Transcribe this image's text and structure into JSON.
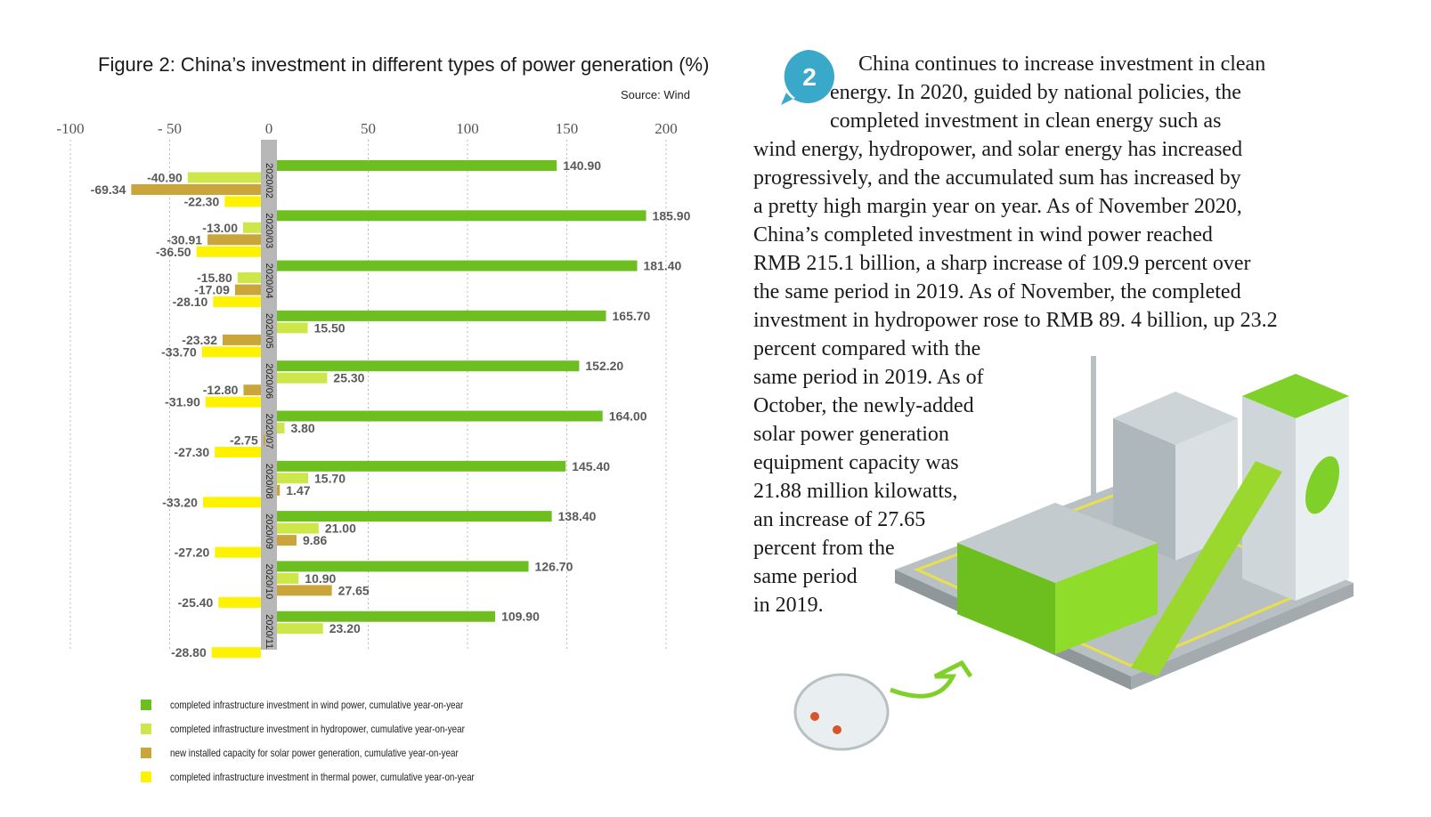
{
  "chart_data": {
    "type": "bar",
    "orientation": "horizontal",
    "title": "Figure 2: China’s investment in different types of power generation (%)",
    "source": "Source: Wind",
    "xlim": [
      -100,
      200
    ],
    "xticks": [
      -100,
      -50,
      0,
      50,
      100,
      150,
      200
    ],
    "xtick_labels": [
      "-100",
      "- 50",
      "0",
      "50",
      "100",
      "150",
      "200"
    ],
    "grid": true,
    "legend_position": "bottom",
    "categories": [
      "2020/02",
      "2020/03",
      "2020/04",
      "2020/05",
      "2020/06",
      "2020/07",
      "2020/08",
      "2020/09",
      "2020/10",
      "2020/11"
    ],
    "series": [
      {
        "name": "completed infrastructure investment in wind power, cumulative year-on-year",
        "color": "#6cbf1f",
        "values": [
          140.9,
          185.9,
          181.4,
          165.7,
          152.2,
          164.0,
          145.4,
          138.4,
          126.7,
          109.9
        ],
        "labels": [
          "140.90",
          "185.90",
          "181.40",
          "165.70",
          "152.20",
          "164.00",
          "145.40",
          "138.40",
          "126.70",
          "109.90"
        ]
      },
      {
        "name": "completed infrastructure investment in hydropower, cumulative year-on-year",
        "color": "#cde64a",
        "values": [
          -40.9,
          -13.0,
          -15.8,
          15.5,
          25.3,
          3.8,
          15.7,
          21.0,
          10.9,
          23.2
        ],
        "labels": [
          "-40.90",
          "-13.00",
          "-15.80",
          "15.50",
          "25.30",
          "3.80",
          "15.70",
          "21.00",
          "10.90",
          "23.20"
        ]
      },
      {
        "name": "new installed capacity for solar power generation, cumulative year-on-year",
        "color": "#c9a53a",
        "values": [
          -69.34,
          -30.91,
          -17.09,
          -23.32,
          -12.8,
          -2.75,
          1.47,
          9.86,
          27.65,
          null
        ],
        "labels": [
          "-69.34",
          "-30.91",
          "-17.09",
          "-23.32",
          "-12.80",
          "-2.75",
          "1.47",
          "9.86",
          "27.65",
          ""
        ]
      },
      {
        "name": "completed infrastructure investment in thermal power, cumulative year-on-year",
        "color": "#fff200",
        "values": [
          -22.3,
          -36.5,
          -28.1,
          -33.7,
          -31.9,
          -27.3,
          -33.2,
          -27.2,
          -25.4,
          -28.8
        ],
        "labels": [
          "-22.30",
          "-36.50",
          "-28.10",
          "-33.70",
          "-31.90",
          "-27.30",
          "-33.20",
          "-27.20",
          "-25.40",
          "-28.80"
        ]
      }
    ]
  },
  "badge": {
    "number": "2",
    "color": "#3aa9c9"
  },
  "article": {
    "lines": [
      "China continues to increase investment in clean",
      "energy. In 2020, guided by national policies, the",
      "completed investment in clean energy such as",
      "wind energy, hydropower, and solar energy has increased",
      "progressively, and the accumulated sum has increased by",
      "a pretty high margin year on year. As of November 2020,",
      "China’s completed investment in wind power reached",
      "RMB 215.1 billion, a sharp increase of 109.9 percent over",
      "the same period in 2019. As of November, the completed",
      "investment in hydropower rose to RMB 89. 4 billion, up 23.2",
      "percent compared with the",
      "same period in 2019. As of",
      "October, the newly-added",
      "solar power generation",
      "equipment capacity was",
      "21.88 million kilowatts,",
      "an increase of 27.65",
      "percent from the",
      "same period",
      "in 2019."
    ]
  }
}
